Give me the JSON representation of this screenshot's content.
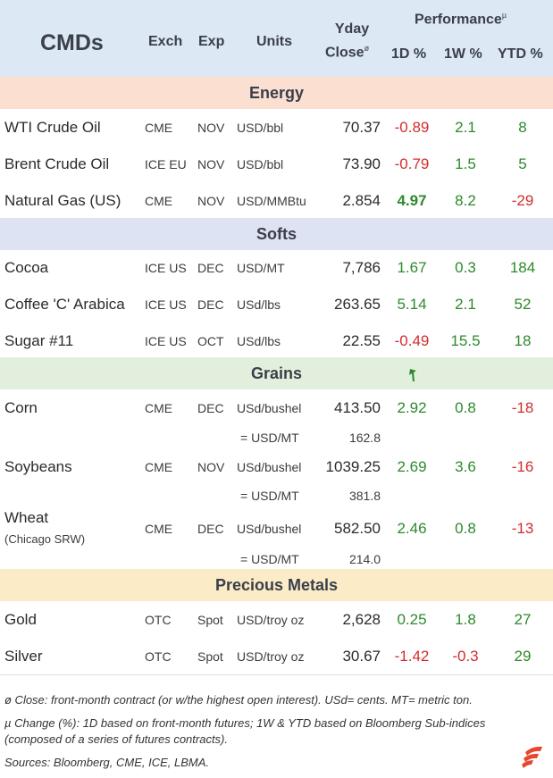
{
  "header": {
    "title": "CMDs",
    "exch": "Exch",
    "exp": "Exp",
    "units": "Units",
    "yday": "Yday",
    "close": "Close",
    "close_mark": "ø",
    "performance": "Performance",
    "perf_mark": "µ",
    "d1": "1D %",
    "w1": "1W %",
    "ytd": "YTD %"
  },
  "sections": {
    "energy": "Energy",
    "softs": "Softs",
    "grains": "Grains",
    "metals": "Precious Metals"
  },
  "energy": [
    {
      "name": "WTI Crude Oil",
      "exch": "CME",
      "exp": "NOV",
      "units": "USD/bbl",
      "close": "70.37",
      "d1": "-0.89",
      "w1": "2.1",
      "ytd": "8"
    },
    {
      "name": "Brent Crude Oil",
      "exch": "ICE EU",
      "exp": "NOV",
      "units": "USD/bbl",
      "close": "73.90",
      "d1": "-0.79",
      "w1": "1.5",
      "ytd": "5"
    },
    {
      "name": "Natural Gas (US)",
      "exch": "CME",
      "exp": "NOV",
      "units": "USD/MMBtu",
      "close": "2.854",
      "d1": "4.97",
      "w1": "8.2",
      "ytd": "-29"
    }
  ],
  "softs": [
    {
      "name": "Cocoa",
      "exch": "ICE US",
      "exp": "DEC",
      "units": "USD/MT",
      "close": "7,786",
      "d1": "1.67",
      "w1": "0.3",
      "ytd": "184"
    },
    {
      "name": "Coffee 'C' Arabica",
      "exch": "ICE US",
      "exp": "DEC",
      "units": "USd/lbs",
      "close": "263.65",
      "d1": "5.14",
      "w1": "2.1",
      "ytd": "52"
    },
    {
      "name": "Sugar #11",
      "exch": "ICE US",
      "exp": "OCT",
      "units": "USd/lbs",
      "close": "22.55",
      "d1": "-0.49",
      "w1": "15.5",
      "ytd": "18"
    }
  ],
  "grains": [
    {
      "name": "Corn",
      "exch": "CME",
      "exp": "DEC",
      "units": "USd/bushel",
      "close": "413.50",
      "d1": "2.92",
      "w1": "0.8",
      "ytd": "-18",
      "sub_label": "= USD/MT",
      "sub_value": "162.8"
    },
    {
      "name": "Soybeans",
      "exch": "CME",
      "exp": "NOV",
      "units": "USd/bushel",
      "close": "1039.25",
      "d1": "2.69",
      "w1": "3.6",
      "ytd": "-16",
      "sub_label": "= USD/MT",
      "sub_value": "381.8"
    },
    {
      "name": "Wheat",
      "name_sub": "(Chicago SRW)",
      "exch": "CME",
      "exp": "DEC",
      "units": "USd/bushel",
      "close": "582.50",
      "d1": "2.46",
      "w1": "0.8",
      "ytd": "-13",
      "sub_label": "= USD/MT",
      "sub_value": "214.0"
    }
  ],
  "metals": [
    {
      "name": "Gold",
      "exch": "OTC",
      "exp": "Spot",
      "units": "USD/troy oz",
      "close": "2,628",
      "d1": "0.25",
      "w1": "1.8",
      "ytd": "27"
    },
    {
      "name": "Silver",
      "exch": "OTC",
      "exp": "Spot",
      "units": "USD/troy oz",
      "close": "30.67",
      "d1": "-1.42",
      "w1": "-0.3",
      "ytd": "29"
    }
  ],
  "notes": {
    "n1": "ø Close: front-month contract (or w/the highest open interest). USd= cents. MT= metric ton.",
    "n2": "µ Change (%): 1D based on front-month futures; 1W & YTD based on Bloomberg Sub-indices (composed of a series of futures contracts).",
    "n3": "Sources: Bloomberg, CME, ICE, LBMA."
  },
  "colors": {
    "positive": "#2d8a2d",
    "negative": "#d42d2d",
    "logo": "#e8472e"
  },
  "icons": {
    "cursor": "cursor-icon",
    "logo": "brand-logo-icon"
  }
}
